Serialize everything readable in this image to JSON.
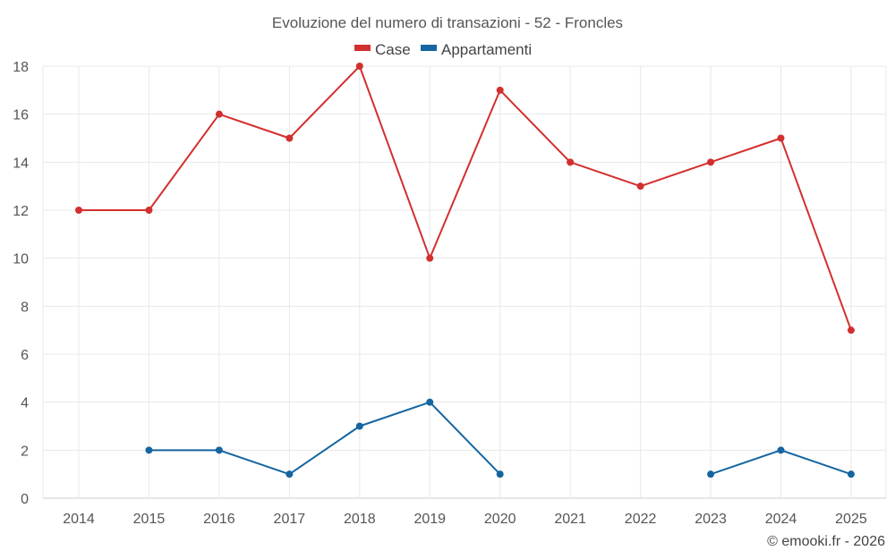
{
  "chart_data": {
    "type": "line",
    "title": "Evoluzione del numero di transazioni - 52 - Froncles",
    "categories": [
      "2014",
      "2015",
      "2016",
      "2017",
      "2018",
      "2019",
      "2020",
      "2021",
      "2022",
      "2023",
      "2024",
      "2025"
    ],
    "series": [
      {
        "name": "Case",
        "color": "#d32f2f",
        "values": [
          12,
          12,
          16,
          15,
          18,
          10,
          17,
          14,
          13,
          14,
          15,
          7
        ]
      },
      {
        "name": "Appartamenti",
        "color": "#1565a0",
        "values": [
          null,
          2,
          2,
          1,
          3,
          4,
          1,
          null,
          null,
          1,
          2,
          1
        ]
      }
    ],
    "ylim": [
      0,
      18
    ],
    "yticks": [
      0,
      2,
      4,
      6,
      8,
      10,
      12,
      14,
      16,
      18
    ],
    "xlabel": "",
    "ylabel": "",
    "grid": true,
    "legend_position": "top-center",
    "credit": "© emooki.fr - 2026"
  }
}
